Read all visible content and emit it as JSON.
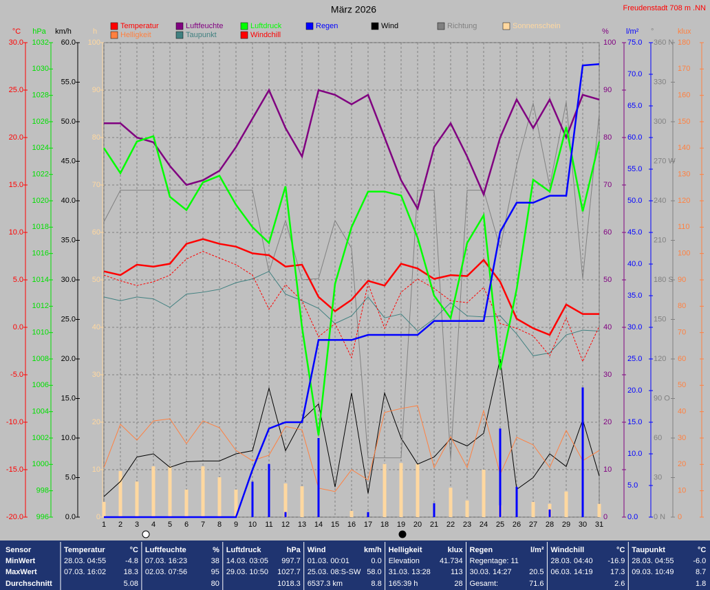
{
  "chart_data": {
    "type": "line",
    "title": "März 2026",
    "station": "Freudenstadt 708 m  .NN",
    "x": [
      1,
      2,
      3,
      4,
      5,
      6,
      7,
      8,
      9,
      10,
      11,
      12,
      13,
      14,
      15,
      16,
      17,
      18,
      19,
      20,
      21,
      22,
      23,
      24,
      25,
      26,
      27,
      28,
      29,
      30,
      31
    ],
    "xlim": [
      1,
      31
    ],
    "xticks": [
      1,
      2,
      3,
      4,
      5,
      6,
      7,
      8,
      9,
      10,
      11,
      12,
      13,
      14,
      15,
      16,
      17,
      18,
      19,
      20,
      21,
      22,
      23,
      24,
      25,
      26,
      27,
      28,
      29,
      30,
      31
    ],
    "grid": true,
    "axes": [
      {
        "unit": "°C",
        "color": "#ff0000",
        "side": "left",
        "lim": [
          -20,
          30
        ],
        "ticks": [
          {
            "value": 30,
            "label": "30.0"
          },
          {
            "value": 25,
            "label": "25.0"
          },
          {
            "value": 20,
            "label": "20.0"
          },
          {
            "value": 15,
            "label": "15.0"
          },
          {
            "value": 10,
            "label": "10.0"
          },
          {
            "value": 5,
            "label": "5.0"
          },
          {
            "value": 0,
            "label": "0.0"
          },
          {
            "value": -5,
            "label": "-5.0"
          },
          {
            "value": -10,
            "label": "-10.0"
          },
          {
            "value": -15,
            "label": "-15.0"
          },
          {
            "value": -20,
            "label": "-20.0"
          }
        ]
      },
      {
        "unit": "hPa",
        "color": "#00e000",
        "side": "left",
        "lim": [
          996,
          1032
        ],
        "ticks": [
          1032,
          1030,
          1028,
          1026,
          1024,
          1022,
          1020,
          1018,
          1016,
          1014,
          1012,
          1010,
          1008,
          1006,
          1004,
          1002,
          1000,
          998,
          996
        ]
      },
      {
        "unit": "km/h",
        "color": "#000000",
        "side": "left",
        "lim": [
          0,
          60
        ],
        "ticks": [
          {
            "value": 60,
            "label": "60.0"
          },
          {
            "value": 55,
            "label": "55.0"
          },
          {
            "value": 50,
            "label": "50.0"
          },
          {
            "value": 45,
            "label": "45.0"
          },
          {
            "value": 40,
            "label": "40.0"
          },
          {
            "value": 35,
            "label": "35.0"
          },
          {
            "value": 30,
            "label": "30.0"
          },
          {
            "value": 25,
            "label": "25.0"
          },
          {
            "value": 20,
            "label": "20.0"
          },
          {
            "value": 15,
            "label": "15.0"
          },
          {
            "value": 10,
            "label": "10.0"
          },
          {
            "value": 5,
            "label": "5.0"
          },
          {
            "value": 0,
            "label": "0.0"
          }
        ]
      },
      {
        "unit": "h",
        "color": "#ffd8a0",
        "side": "left",
        "lim": [
          0,
          100
        ],
        "ticks": [
          100,
          90,
          80,
          70,
          60,
          50,
          40,
          30,
          20,
          10,
          0
        ]
      },
      {
        "unit": "%",
        "color": "#800080",
        "side": "right",
        "lim": [
          0,
          100
        ],
        "ticks": [
          100,
          90,
          80,
          70,
          60,
          50,
          40,
          30,
          20,
          10,
          0
        ]
      },
      {
        "unit": "l/m²",
        "color": "#0000ff",
        "side": "right",
        "lim": [
          0,
          75
        ],
        "ticks": [
          {
            "value": 75,
            "label": "75.0"
          },
          {
            "value": 70,
            "label": "70.0"
          },
          {
            "value": 65,
            "label": "65.0"
          },
          {
            "value": 60,
            "label": "60.0"
          },
          {
            "value": 55,
            "label": "55.0"
          },
          {
            "value": 50,
            "label": "50.0"
          },
          {
            "value": 45,
            "label": "45.0"
          },
          {
            "value": 40,
            "label": "40.0"
          },
          {
            "value": 35,
            "label": "35.0"
          },
          {
            "value": 30,
            "label": "30.0"
          },
          {
            "value": 25,
            "label": "25.0"
          },
          {
            "value": 20,
            "label": "20.0"
          },
          {
            "value": 15,
            "label": "15.0"
          },
          {
            "value": 10,
            "label": "10.0"
          },
          {
            "value": 5,
            "label": "5.0"
          },
          {
            "value": 0,
            "label": "0.0"
          }
        ]
      },
      {
        "unit": "°",
        "color": "#808080",
        "side": "right",
        "lim": [
          0,
          360
        ],
        "ticks": [
          {
            "value": 360,
            "label": "360 N"
          },
          330,
          300,
          {
            "value": 270,
            "label": "270 W"
          },
          240,
          210,
          {
            "value": 180,
            "label": "180 S"
          },
          150,
          120,
          {
            "value": 90,
            "label": "90  O"
          },
          60,
          30,
          {
            "value": 0,
            "label": "0  N"
          }
        ]
      },
      {
        "unit": "klux",
        "color": "#ff8040",
        "side": "right",
        "lim": [
          0,
          180
        ],
        "ticks": [
          180,
          170,
          160,
          150,
          140,
          130,
          120,
          110,
          100,
          90,
          80,
          70,
          60,
          50,
          40,
          30,
          20,
          10,
          0
        ]
      }
    ],
    "series": [
      {
        "name": "Temperatur",
        "color": "#ff0000",
        "axis": 0,
        "style": "thick",
        "values": [
          5.9,
          5.5,
          6.6,
          6.4,
          6.7,
          8.8,
          9.3,
          8.8,
          8.5,
          7.8,
          7.6,
          6.4,
          6.6,
          3.2,
          1.7,
          2.9,
          4.9,
          4.4,
          6.7,
          6.2,
          5.1,
          5.5,
          5.4,
          7.1,
          4.8,
          0.9,
          -0.1,
          -0.8,
          2.4,
          1.4,
          1.4
        ]
      },
      {
        "name": "Luftfeuchte",
        "color": "#800080",
        "axis": 4,
        "style": "thick",
        "values": [
          83,
          83,
          80,
          79,
          74,
          70,
          71,
          73,
          78,
          84,
          90,
          82,
          76,
          90,
          89,
          87,
          89,
          80,
          71,
          65,
          78,
          83,
          76,
          68,
          80,
          88,
          82,
          88,
          80,
          89,
          88
        ]
      },
      {
        "name": "Luftdruck",
        "color": "#00ff00",
        "axis": 1,
        "style": "thick",
        "values": [
          1024.0,
          1022.1,
          1024.5,
          1024.9,
          1020.3,
          1019.3,
          1021.4,
          1021.9,
          1019.7,
          1018.0,
          1016.8,
          1021.1,
          1010.4,
          1002.2,
          1013.7,
          1018.0,
          1020.7,
          1020.7,
          1020.4,
          1017.2,
          1012.8,
          1011.1,
          1016.8,
          1018.9,
          1007.2,
          1013.3,
          1021.6,
          1020.7,
          1025.6,
          1019.2,
          1024.5
        ]
      },
      {
        "name": "Regen",
        "color": "#0000ff",
        "axis": 5,
        "style": "thick",
        "values": [
          0,
          0,
          0,
          0,
          0,
          0,
          0,
          0,
          0,
          7.5,
          14.0,
          15.0,
          15.0,
          28.0,
          28.0,
          28.0,
          28.8,
          28.8,
          28.8,
          28.8,
          31.0,
          31.0,
          31.0,
          31.0,
          45.1,
          49.7,
          49.7,
          50.8,
          50.8,
          71.4,
          71.6
        ],
        "bar_values": [
          0,
          0,
          0,
          0,
          0,
          0,
          0,
          0,
          0,
          5.6,
          8.4,
          0.8,
          0,
          12.5,
          0,
          0,
          0.8,
          0,
          0,
          0,
          2.2,
          0,
          0,
          0,
          14.0,
          4.8,
          0,
          1.2,
          0,
          20.5,
          0
        ]
      },
      {
        "name": "Wind",
        "color": "#000000",
        "axis": 2,
        "style": "thin",
        "values": [
          2.6,
          4.5,
          7.6,
          8.0,
          6.3,
          7.0,
          7.1,
          7.1,
          8.0,
          8.4,
          16.3,
          8.4,
          12.3,
          14.3,
          3.8,
          15.7,
          3.0,
          15.7,
          10.0,
          6.7,
          7.6,
          9.9,
          9.0,
          10.6,
          20.0,
          3.5,
          5.0,
          8.0,
          6.4,
          12.3,
          5.2
        ]
      },
      {
        "name": "Richtung",
        "color": "#808080",
        "axis": 6,
        "style": "thin",
        "values": [
          224,
          248,
          248,
          248,
          248,
          248,
          248,
          248,
          248,
          248,
          186,
          225,
          180,
          181,
          225,
          204,
          45,
          45,
          45,
          248,
          248,
          44,
          248,
          248,
          204,
          267,
          314,
          251,
          315,
          181,
          306
        ]
      },
      {
        "name": "Sonnenschein",
        "color": "#ffd8a0",
        "axis": 3,
        "style": "bar",
        "values": [
          3.2,
          9.7,
          7.5,
          10.7,
          10.7,
          5.8,
          10.7,
          8.4,
          5.8,
          0,
          0,
          7.1,
          6.5,
          0,
          0,
          1.3,
          0,
          11.2,
          11.4,
          11.2,
          0,
          6.2,
          3.5,
          10.0,
          2.5,
          0,
          3.2,
          2.8,
          5.4,
          0,
          2.8
        ]
      },
      {
        "name": "Helligkeit",
        "color": "#ff8040",
        "axis": 7,
        "style": "thin",
        "values": [
          18.8,
          35.2,
          29.2,
          36.5,
          37.3,
          27.9,
          36.5,
          33.9,
          25.3,
          21.4,
          23.5,
          34.4,
          33.1,
          11.0,
          9.7,
          18.0,
          14.1,
          39.7,
          41.2,
          42.3,
          18.8,
          30.5,
          18.8,
          40.4,
          16.2,
          30.3,
          27.4,
          18.8,
          32.9,
          21.4,
          25.3
        ]
      },
      {
        "name": "Taupunkt",
        "color": "#408080",
        "axis": 0,
        "style": "thin",
        "values": [
          3.2,
          2.8,
          3.2,
          3.0,
          2.1,
          3.5,
          3.7,
          4.0,
          4.7,
          5.1,
          5.9,
          3.5,
          2.8,
          2.0,
          0.4,
          1.2,
          3.2,
          1.0,
          1.4,
          -0.4,
          0.9,
          2.6,
          1.2,
          1.1,
          1.2,
          -0.7,
          -3.0,
          -2.7,
          -0.8,
          -0.3,
          -0.4
        ]
      },
      {
        "name": "Windchill",
        "color": "#ff0000",
        "axis": 0,
        "style": "dashed",
        "values": [
          5.5,
          4.9,
          4.4,
          4.8,
          5.5,
          7.2,
          8.0,
          7.3,
          6.6,
          5.5,
          1.9,
          4.5,
          2.8,
          -1.0,
          0.4,
          -3.2,
          4.6,
          -0.1,
          3.7,
          5.1,
          4.1,
          2.8,
          2.6,
          4.2,
          0.4,
          -0.1,
          -0.9,
          -3.0,
          1.0,
          -3.6,
          0.1
        ]
      }
    ]
  },
  "table": {
    "header": "Sensor",
    "row_labels": [
      "MinWert",
      "MaxWert",
      "Durchschnitt"
    ],
    "groups": [
      {
        "name": "Temperatur",
        "unit": "°C",
        "rows": [
          {
            "note": "28.03.  04:55",
            "value": "-4.8"
          },
          {
            "note": "07.03.  16:02",
            "value": "18.3"
          },
          {
            "value": "5.08"
          }
        ]
      },
      {
        "name": "Luftfeuchte",
        "unit": "%",
        "rows": [
          {
            "note": "07.03.  16:23",
            "value": "38"
          },
          {
            "note": "02.03.  07:56",
            "value": "95"
          },
          {
            "value": "80"
          }
        ]
      },
      {
        "name": "Luftdruck",
        "unit": "hPa",
        "rows": [
          {
            "note": "14.03.  03:05",
            "value": "997.7"
          },
          {
            "note": "29.03.  10:50",
            "value": "1027.7"
          },
          {
            "value": "1018.3"
          }
        ]
      },
      {
        "name": "Wind",
        "unit": "km/h",
        "rows": [
          {
            "note": "01.03.  00:01",
            "value": "0.0"
          },
          {
            "note": "25.03.  08:S-SW",
            "value": "58.0"
          },
          {
            "note": "6537.3 km",
            "value": "8.8"
          }
        ]
      },
      {
        "name": "Helligkeit",
        "unit": "klux",
        "rows": [
          {
            "note": "Elevation",
            "value": "41.734"
          },
          {
            "note": "31.03.  13:28",
            "value": "113"
          },
          {
            "note": "165:39 h",
            "value": "28"
          }
        ]
      },
      {
        "name": "Regen",
        "unit": "l/m²",
        "rows": [
          {
            "note": "Regentage: 11"
          },
          {
            "note": "30.03.  14:27",
            "value": "20.5"
          },
          {
            "note": "Gesamt:",
            "value": "71.6"
          }
        ]
      },
      {
        "name": "Windchill",
        "unit": "°C",
        "rows": [
          {
            "note": "28.03.  04:40",
            "value": "-16.9"
          },
          {
            "note": "06.03.  14:19",
            "value": "17.3"
          },
          {
            "value": "2.6"
          }
        ]
      },
      {
        "name": "Taupunkt",
        "unit": "°C",
        "rows": [
          {
            "note": "28.03.  04:55",
            "value": "-6.0"
          },
          {
            "note": "09.03.  10:49",
            "value": "8.7"
          },
          {
            "value": "1.8"
          }
        ]
      }
    ]
  }
}
